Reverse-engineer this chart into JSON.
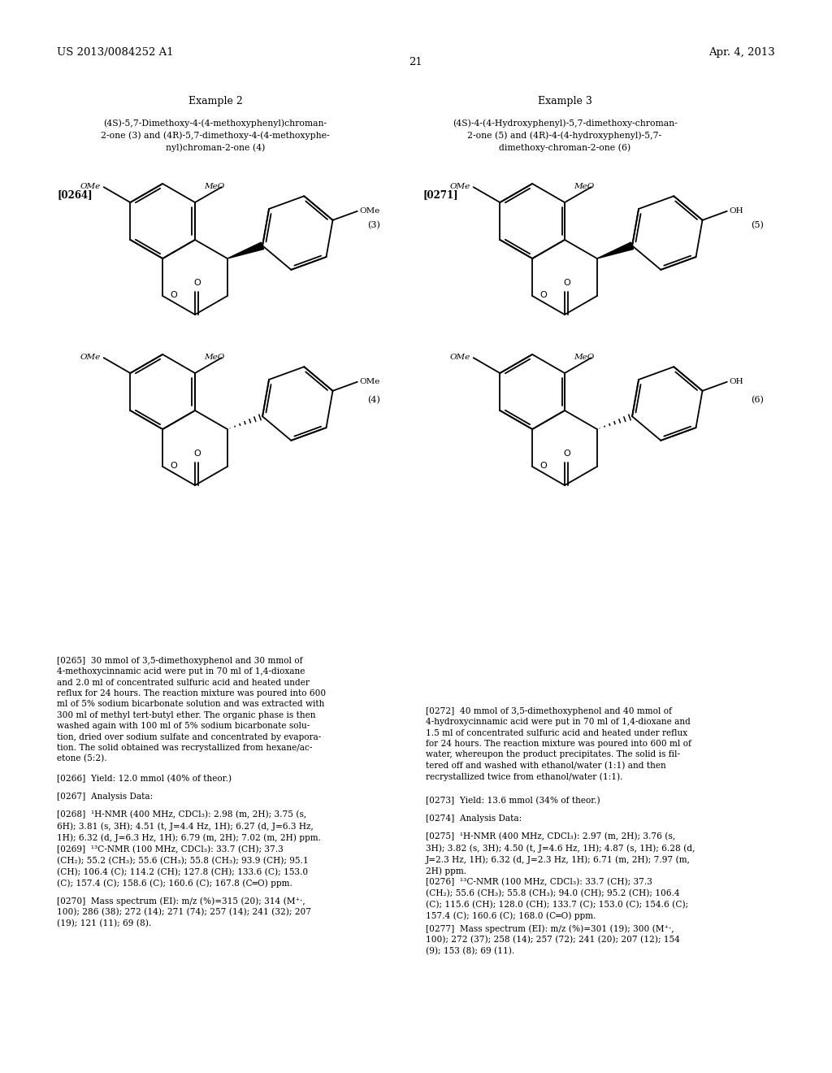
{
  "page_width": 10.24,
  "page_height": 13.2,
  "bg_color": "#ffffff",
  "header_left": "US 2013/0084252 A1",
  "header_right": "Apr. 4, 2013",
  "page_number": "21",
  "example2_title": "Example 2",
  "example3_title": "Example 3",
  "example2_subtitle": "(4S)-5,7-Dimethoxy-4-(4-methoxyphenyl)chroman-\n2-one (3) and (4R)-5,7-dimethoxy-4-(4-methoxyphe-\nnyl)chroman-2-one (4)",
  "example3_subtitle": "(4S)-4-(4-Hydroxyphenyl)-5,7-dimethoxy-chroman-\n2-one (5) and (4R)-4-(4-hydroxyphenyl)-5,7-\ndimethoxy-chroman-2-one (6)",
  "label_0264": "[0264]",
  "label_0271": "[0271]",
  "struct3_label": "(3)",
  "struct4_label": "(4)",
  "struct5_label": "(5)",
  "struct6_label": "(6)",
  "para_0265_text": "[0265]  30 mmol of 3,5-dimethoxyphenol and 30 mmol of\n4-methoxycinnamic acid were put in 70 ml of 1,4-dioxane\nand 2.0 ml of concentrated sulfuric acid and heated under\nreflux for 24 hours. The reaction mixture was poured into 600\nml of 5% sodium bicarbonate solution and was extracted with\n300 ml of methyl tert-butyl ether. The organic phase is then\nwashed again with 100 ml of 5% sodium bicarbonate solu-\ntion, dried over sodium sulfate and concentrated by evapora-\ntion. The solid obtained was recrystallized from hexane/ac-\netone (5:2).",
  "para_0266_text": "[0266]  Yield: 12.0 mmol (40% of theor.)",
  "para_0267_text": "[0267]  Analysis Data:",
  "para_0268_text": "[0268]  ¹H-NMR (400 MHz, CDCl₃): 2.98 (m, 2H); 3.75 (s,\n6H); 3.81 (s, 3H); 4.51 (t, J=4.4 Hz, 1H); 6.27 (d, J=6.3 Hz,\n1H); 6.32 (d, J=6.3 Hz, 1H); 6.79 (m, 2H); 7.02 (m, 2H) ppm.",
  "para_0269_text": "[0269]  ¹³C-NMR (100 MHz, CDCl₃): 33.7 (CH); 37.3\n(CH₂); 55.2 (CH₃); 55.6 (CH₃); 55.8 (CH₃); 93.9 (CH); 95.1\n(CH); 106.4 (C); 114.2 (CH); 127.8 (CH); 133.6 (C); 153.0\n(C); 157.4 (C); 158.6 (C); 160.6 (C); 167.8 (C═O) ppm.",
  "para_0270_text": "[0270]  Mass spectrum (EI): m/z (%)=315 (20); 314 (M⁺·,\n100); 286 (38); 272 (14); 271 (74); 257 (14); 241 (32); 207\n(19); 121 (11); 69 (8).",
  "para_0272_text": "[0272]  40 mmol of 3,5-dimethoxyphenol and 40 mmol of\n4-hydroxycinnamic acid were put in 70 ml of 1,4-dioxane and\n1.5 ml of concentrated sulfuric acid and heated under reflux\nfor 24 hours. The reaction mixture was poured into 600 ml of\nwater, whereupon the product precipitates. The solid is fil-\ntered off and washed with ethanol/water (1:1) and then\nrecrystallized twice from ethanol/water (1:1).",
  "para_0273_text": "[0273]  Yield: 13.6 mmol (34% of theor.)",
  "para_0274_text": "[0274]  Analysis Data:",
  "para_0275_text": "[0275]  ¹H-NMR (400 MHz, CDCl₃): 2.97 (m, 2H); 3.76 (s,\n3H); 3.82 (s, 3H); 4.50 (t, J=4.6 Hz, 1H); 4.87 (s, 1H); 6.28 (d,\nJ=2.3 Hz, 1H); 6.32 (d, J=2.3 Hz, 1H); 6.71 (m, 2H); 7.97 (m,\n2H) ppm.",
  "para_0276_text": "[0276]  ¹³C-NMR (100 MHz, CDCl₃): 33.7 (CH); 37.3\n(CH₂); 55.6 (CH₃); 55.8 (CH₃); 94.0 (CH); 95.2 (CH); 106.4\n(C); 115.6 (CH); 128.0 (CH); 133.7 (C); 153.0 (C); 154.6 (C);\n157.4 (C); 160.6 (C); 168.0 (C═O) ppm.",
  "para_0277_text": "[0277]  Mass spectrum (EI): m/z (%)=301 (19); 300 (M⁺·,\n100); 272 (37); 258 (14); 257 (72); 241 (20); 207 (12); 154\n(9); 153 (8); 69 (11).",
  "text_color": "#000000"
}
